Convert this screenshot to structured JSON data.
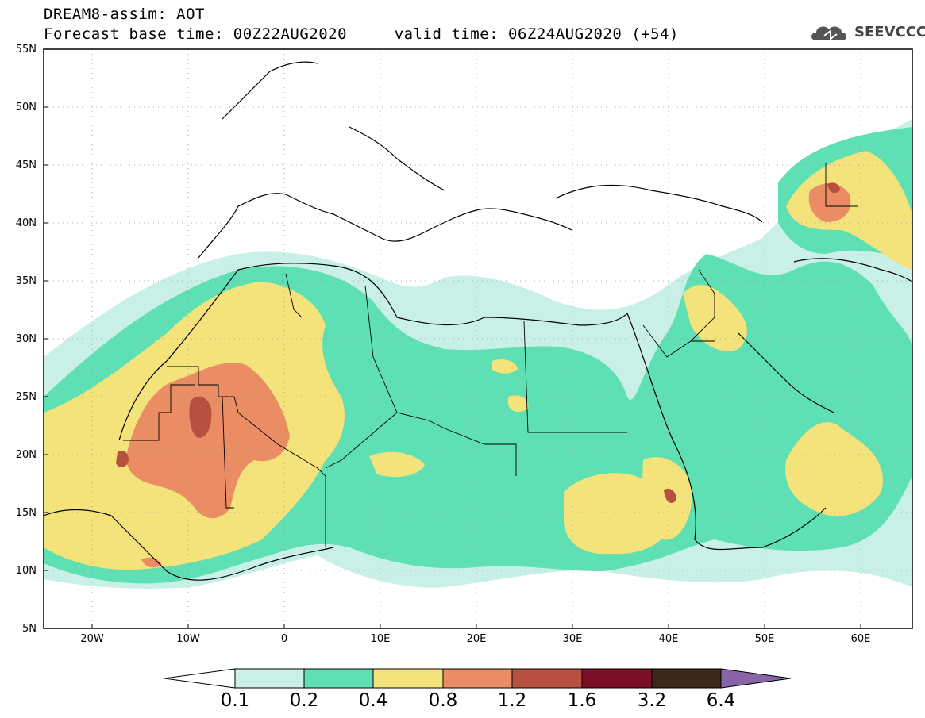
{
  "header": {
    "title": "DREAM8-assim: AOT",
    "subtitle": "Forecast base time: 00Z22AUG2020     valid time: 06Z24AUG2020 (+54)"
  },
  "logo": {
    "text": "SEEVCCC",
    "icon": "cloud-icon"
  },
  "map": {
    "lon_range": [
      -25,
      65
    ],
    "lat_range": [
      5,
      55
    ],
    "lat_ticks": [
      "55N",
      "50N",
      "45N",
      "40N",
      "35N",
      "30N",
      "25N",
      "20N",
      "15N",
      "10N",
      "5N"
    ],
    "lon_ticks": [
      "20W",
      "10W",
      "0",
      "10E",
      "20E",
      "30E",
      "40E",
      "50E",
      "60E"
    ]
  },
  "colorbar": {
    "labels": [
      "0.1",
      "0.2",
      "0.4",
      "0.8",
      "1.2",
      "1.6",
      "3.2",
      "6.4"
    ],
    "colors": [
      "#c8f0e6",
      "#5fe0b4",
      "#f4e27a",
      "#ea8c64",
      "#b8503f",
      "#7c0f28",
      "#3c2818",
      "#8a64a8"
    ],
    "under_color": "#ffffff"
  },
  "colors": {
    "level1": "#c8f0e6",
    "level2": "#5fe0b4",
    "level3": "#f4e27a",
    "level4": "#ea8c64",
    "level5": "#b8503f"
  }
}
